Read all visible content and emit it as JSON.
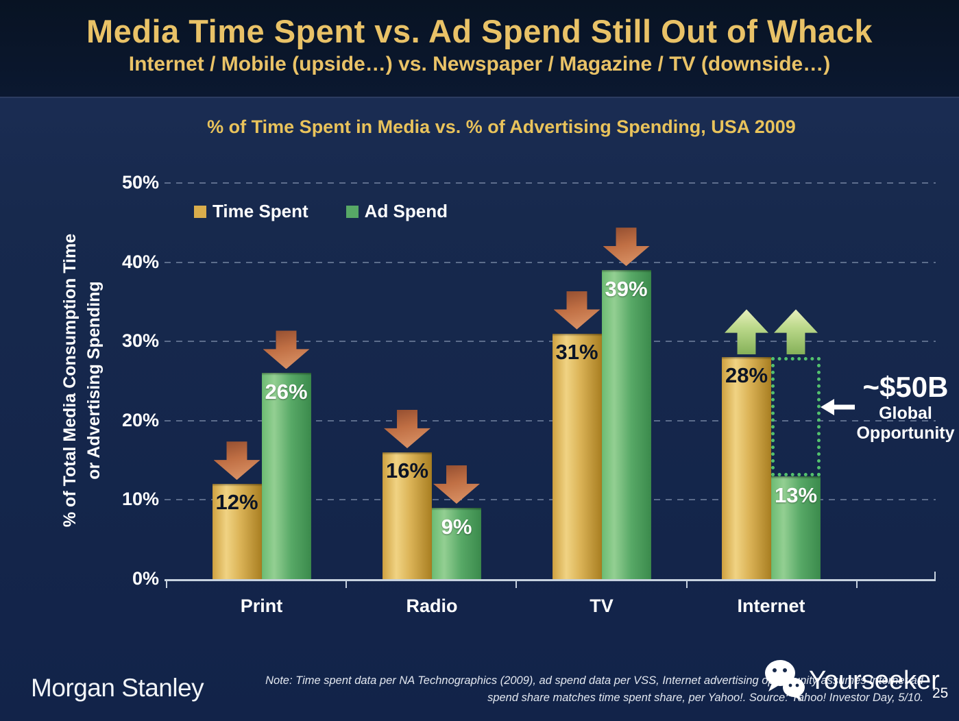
{
  "header": {
    "title": "Media Time Spent vs. Ad Spend Still Out of Whack",
    "subtitle": "Internet / Mobile (upside…) vs. Newspaper / Magazine / TV (downside…)"
  },
  "chart_data": {
    "type": "bar",
    "title": "% of Time Spent in Media vs. % of Advertising Spending, USA 2009",
    "categories": [
      "Print",
      "Radio",
      "TV",
      "Internet"
    ],
    "series": [
      {
        "name": "Time Spent",
        "values": [
          12,
          16,
          31,
          28
        ],
        "color": "#d9ad4c"
      },
      {
        "name": "Ad Spend",
        "values": [
          26,
          9,
          39,
          13
        ],
        "color": "#57a866"
      }
    ],
    "value_labels": [
      {
        "time_spent": "12%",
        "ad_spend": "26%"
      },
      {
        "time_spent": "16%",
        "ad_spend": "9%"
      },
      {
        "time_spent": "31%",
        "ad_spend": "39%"
      },
      {
        "time_spent": "28%",
        "ad_spend": "13%"
      }
    ],
    "trend_arrows": [
      "down",
      "down",
      "down",
      "up"
    ],
    "ylabel_line1": "% of Total Media Consumption Time",
    "ylabel_line2": "or Advertising Spending",
    "yticks": [
      "0%",
      "10%",
      "20%",
      "30%",
      "40%",
      "50%"
    ],
    "ylim": [
      0,
      50
    ],
    "grid": "dashed-horizontal",
    "legend_position": "top-left-inside",
    "annotation": {
      "value": "~$50B",
      "label_line1": "Global",
      "label_line2": "Opportunity",
      "arrow": "left-arrow",
      "box": "dotted range from Internet Ad Spend 13% up to Time Spent 28%"
    }
  },
  "colors": {
    "background_main": "#17294d",
    "background_header": "#0a1628",
    "accent_gold": "#e9c267",
    "bar_gold": "#d9ad4c",
    "bar_green": "#57a866",
    "arrow_down_red": "#c06f44",
    "arrow_up_green": "#bcd98b",
    "opportunity_dotted_green": "#53c16e",
    "text_white": "#ffffff"
  },
  "footer": {
    "brand": "Morgan Stanley",
    "note_line1": "Note: Time spent data per NA Technographics (2009), ad spend data per VSS, Internet advertising opportunity assumes Internet ad",
    "note_line2": "spend share matches time spent share, per Yahoo!. Source: Yahoo! Investor Day, 5/10.",
    "watermark": "Yourseeker",
    "page_number": "25"
  }
}
